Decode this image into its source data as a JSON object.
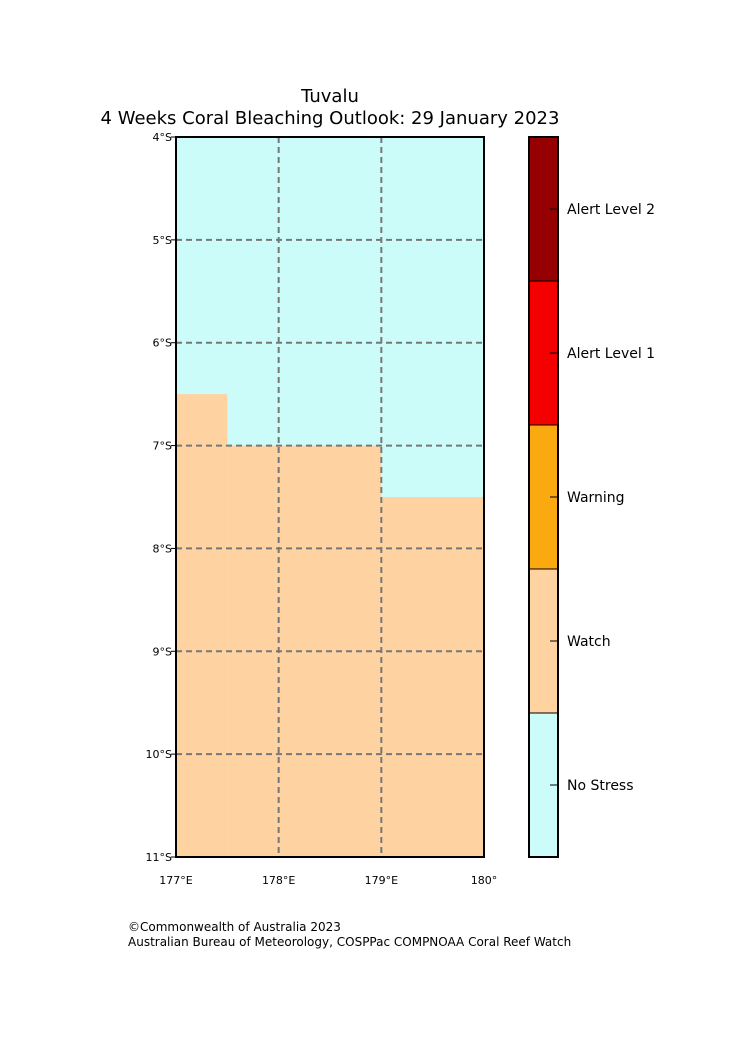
{
  "title": {
    "line1": "Tuvalu",
    "line2": "4 Weeks Coral Bleaching Outlook: 29 January 2023"
  },
  "map": {
    "lon_range": [
      177,
      180
    ],
    "lat_range": [
      -11,
      -4
    ],
    "lat_ticks": [
      {
        "value": -4,
        "label": "4°S"
      },
      {
        "value": -5,
        "label": "5°S"
      },
      {
        "value": -6,
        "label": "6°S"
      },
      {
        "value": -7,
        "label": "7°S"
      },
      {
        "value": -8,
        "label": "8°S"
      },
      {
        "value": -9,
        "label": "9°S"
      },
      {
        "value": -10,
        "label": "10°S"
      },
      {
        "value": -11,
        "label": "11°S"
      }
    ],
    "lon_ticks": [
      {
        "value": 177,
        "label": "177°E"
      },
      {
        "value": 178,
        "label": "178°E"
      },
      {
        "value": 179,
        "label": "179°E"
      },
      {
        "value": 180,
        "label": "180°"
      }
    ],
    "gridlines": true,
    "regions": [
      {
        "level": "Watch",
        "lon": [
          177,
          177.5
        ],
        "lat": [
          -11,
          -6.5
        ]
      },
      {
        "level": "Watch",
        "lon": [
          177.5,
          179
        ],
        "lat": [
          -11,
          -7
        ]
      },
      {
        "level": "Watch",
        "lon": [
          179,
          180
        ],
        "lat": [
          -11,
          -7.5
        ]
      }
    ],
    "background_level": "No Stress"
  },
  "legend": {
    "levels": [
      {
        "label": "No Stress",
        "color": "#ccfcfa"
      },
      {
        "label": "Watch",
        "color": "#fed3a1"
      },
      {
        "label": "Warning",
        "color": "#faa911"
      },
      {
        "label": "Alert Level 1",
        "color": "#f50000"
      },
      {
        "label": "Alert Level 2",
        "color": "#960000"
      }
    ]
  },
  "footer": {
    "line1": "©Commonwealth of Australia 2023",
    "line2": "Australian Bureau of Meteorology, COSPPac COMPNOAA Coral Reef Watch"
  }
}
